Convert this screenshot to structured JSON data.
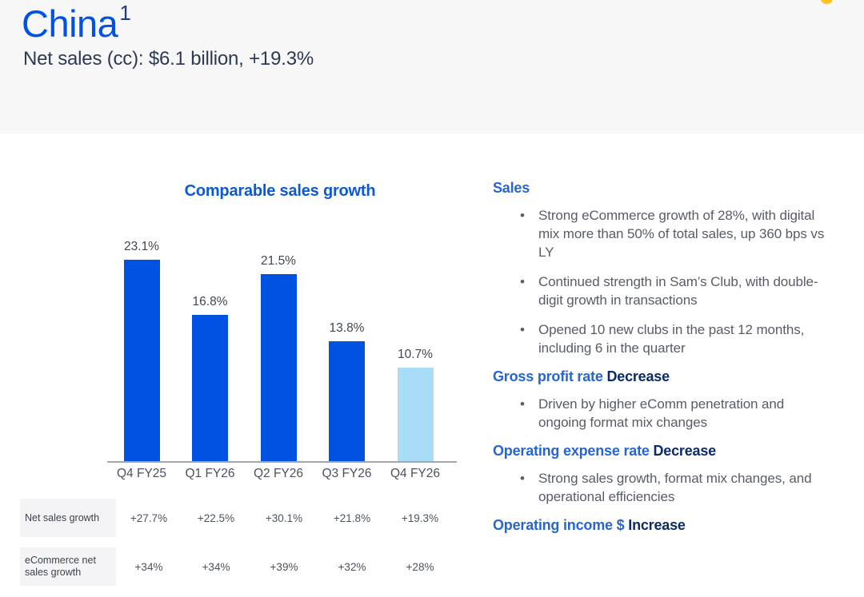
{
  "header": {
    "title": "China",
    "superscript": "1",
    "subtitle": "Net sales (cc): $6.1 billion, +19.3%"
  },
  "chart_data": {
    "type": "bar",
    "title": "Comparable sales growth",
    "categories": [
      "Q4 FY25",
      "Q1 FY26",
      "Q2 FY26",
      "Q3 FY26",
      "Q4 FY26"
    ],
    "values": [
      23.1,
      16.8,
      21.5,
      13.8,
      10.7
    ],
    "value_labels": [
      "23.1%",
      "16.8%",
      "21.5%",
      "13.8%",
      "10.7%"
    ],
    "bar_colors": [
      "#0053e2",
      "#0053e2",
      "#0053e2",
      "#0053e2",
      "#a9ddf7"
    ],
    "ylim": [
      0,
      25
    ],
    "grid": false,
    "legend": false,
    "highlight_note": "current quarter bar shown in light sky blue"
  },
  "metrics_table": {
    "rows": [
      {
        "label": "Net sales growth",
        "values": [
          "+27.7%",
          "+22.5%",
          "+30.1%",
          "+21.8%",
          "+19.3%"
        ]
      },
      {
        "label": "eCommerce net sales growth",
        "values": [
          "+34%",
          "+34%",
          "+39%",
          "+32%",
          "+28%"
        ]
      }
    ]
  },
  "details": {
    "sections": [
      {
        "title": "Sales",
        "status": "",
        "bullets": [
          "Strong eCommerce growth of 28%, with digital mix more than 50% of total sales, up 360 bps vs LY",
          "Continued strength in Sam’s Club, with double-digit growth in transactions",
          "Opened 10 new clubs in the past 12 months, including 6 in the quarter"
        ]
      },
      {
        "title": "Gross profit rate",
        "status": "Decrease",
        "bullets": [
          "Driven by higher eComm penetration and ongoing format mix changes"
        ]
      },
      {
        "title": "Operating expense rate",
        "status": "Decrease",
        "bullets": [
          "Strong sales growth, format mix changes, and operational efficiencies"
        ]
      },
      {
        "title": "Operating income $",
        "status": "Increase",
        "bullets": []
      }
    ]
  },
  "colors": {
    "true_blue": "#0053e2",
    "sky_blue": "#a9ddf7",
    "heading_blue": "#2566d4",
    "navy": "#0d2b66",
    "spark_yellow": "#ffc220",
    "header_band_bg": "#f7f7f8",
    "body_gray": "#575c66",
    "table_label_bg": "#f4f4f6"
  }
}
